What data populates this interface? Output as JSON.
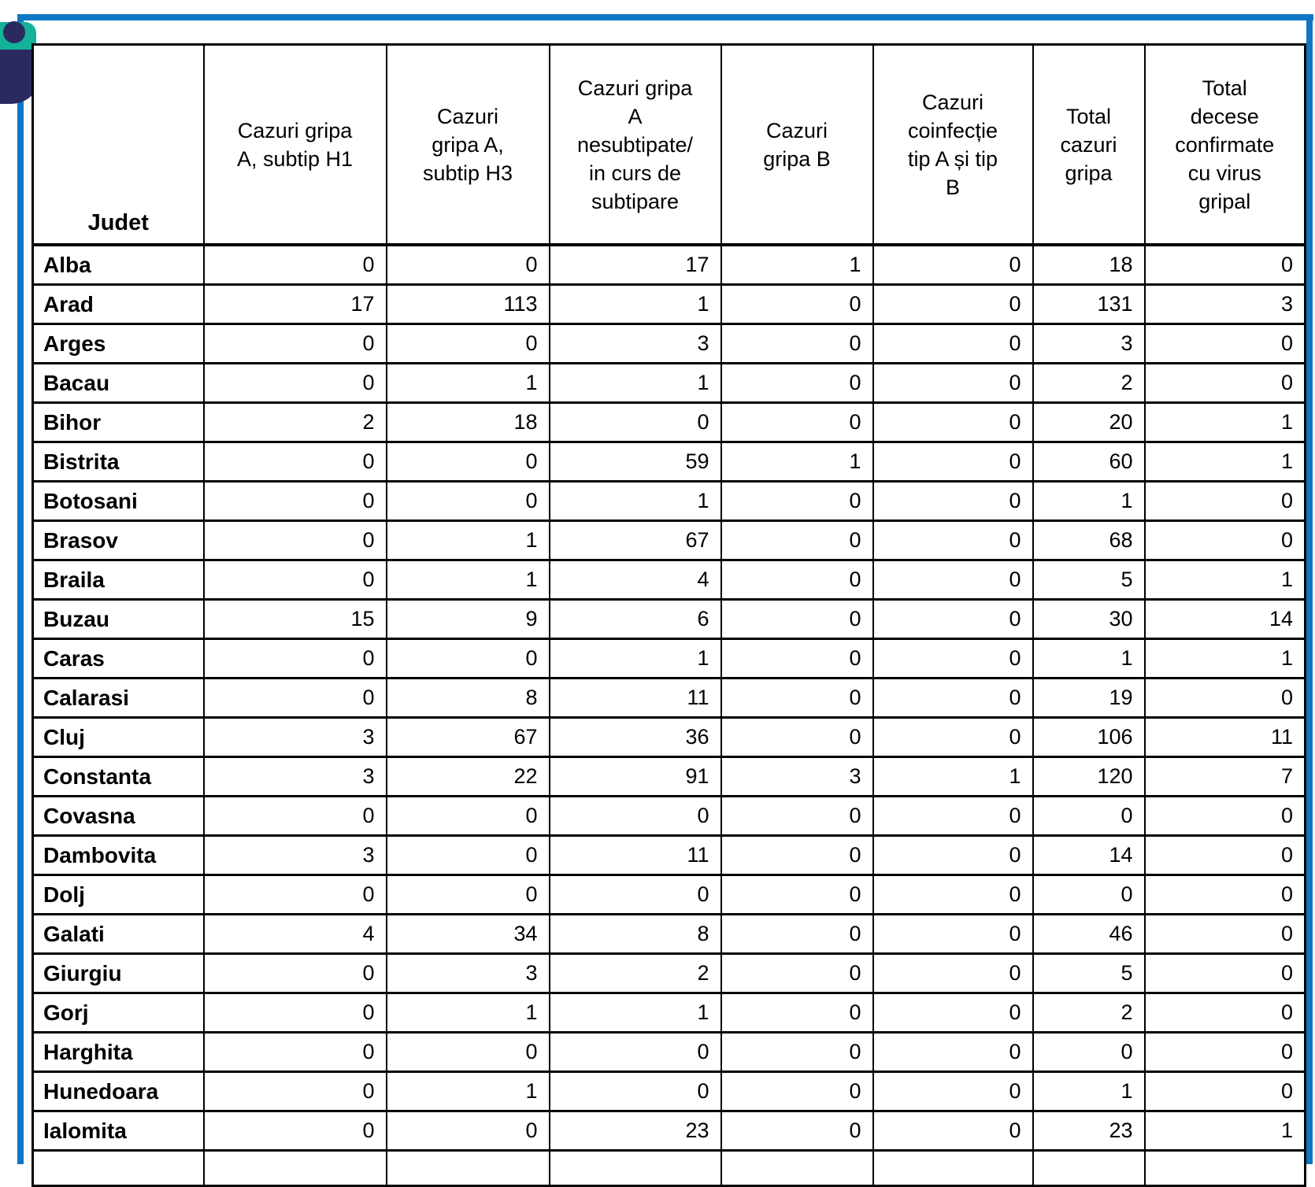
{
  "page": {
    "background": "#ffffff",
    "frame_color": "#0e76c5"
  },
  "logo": {
    "teal_color": "#15b29a",
    "navy_color": "#2a2a60"
  },
  "table": {
    "columns": [
      {
        "id": "judet",
        "label": "Judet"
      },
      {
        "id": "gripa_a_h1",
        "label": "Cazuri gripa\nA, subtip H1"
      },
      {
        "id": "gripa_a_h3",
        "label": "Cazuri\ngripa A,\nsubtip H3"
      },
      {
        "id": "gripa_a_nesubtipate",
        "label": "Cazuri gripa\nA\nnesubtipate/\nin curs de\nsubtipare"
      },
      {
        "id": "gripa_b",
        "label": "Cazuri\ngripa B"
      },
      {
        "id": "coinfectie_ab",
        "label": "Cazuri\ncoinfecție\ntip A și tip\nB"
      },
      {
        "id": "total_cazuri",
        "label": "Total\ncazuri\ngripa"
      },
      {
        "id": "total_decese",
        "label": "Total\ndecese\nconfirmate\ncu virus\ngripal"
      }
    ],
    "rows": [
      {
        "judet": "Alba",
        "values": [
          0,
          0,
          17,
          1,
          0,
          18,
          0
        ]
      },
      {
        "judet": "Arad",
        "values": [
          17,
          113,
          1,
          0,
          0,
          131,
          3
        ]
      },
      {
        "judet": "Arges",
        "values": [
          0,
          0,
          3,
          0,
          0,
          3,
          0
        ]
      },
      {
        "judet": "Bacau",
        "values": [
          0,
          1,
          1,
          0,
          0,
          2,
          0
        ]
      },
      {
        "judet": "Bihor",
        "values": [
          2,
          18,
          0,
          0,
          0,
          20,
          1
        ]
      },
      {
        "judet": "Bistrita",
        "values": [
          0,
          0,
          59,
          1,
          0,
          60,
          1
        ]
      },
      {
        "judet": "Botosani",
        "values": [
          0,
          0,
          1,
          0,
          0,
          1,
          0
        ]
      },
      {
        "judet": "Brasov",
        "values": [
          0,
          1,
          67,
          0,
          0,
          68,
          0
        ]
      },
      {
        "judet": "Braila",
        "values": [
          0,
          1,
          4,
          0,
          0,
          5,
          1
        ]
      },
      {
        "judet": "Buzau",
        "values": [
          15,
          9,
          6,
          0,
          0,
          30,
          14
        ]
      },
      {
        "judet": "Caras",
        "values": [
          0,
          0,
          1,
          0,
          0,
          1,
          1
        ]
      },
      {
        "judet": "Calarasi",
        "values": [
          0,
          8,
          11,
          0,
          0,
          19,
          0
        ]
      },
      {
        "judet": "Cluj",
        "values": [
          3,
          67,
          36,
          0,
          0,
          106,
          11
        ]
      },
      {
        "judet": "Constanta",
        "values": [
          3,
          22,
          91,
          3,
          1,
          120,
          7
        ]
      },
      {
        "judet": "Covasna",
        "values": [
          0,
          0,
          0,
          0,
          0,
          0,
          0
        ]
      },
      {
        "judet": "Dambovita",
        "values": [
          3,
          0,
          11,
          0,
          0,
          14,
          0
        ]
      },
      {
        "judet": "Dolj",
        "values": [
          0,
          0,
          0,
          0,
          0,
          0,
          0
        ]
      },
      {
        "judet": "Galati",
        "values": [
          4,
          34,
          8,
          0,
          0,
          46,
          0
        ]
      },
      {
        "judet": "Giurgiu",
        "values": [
          0,
          3,
          2,
          0,
          0,
          5,
          0
        ]
      },
      {
        "judet": "Gorj",
        "values": [
          0,
          1,
          1,
          0,
          0,
          2,
          0
        ]
      },
      {
        "judet": "Harghita",
        "values": [
          0,
          0,
          0,
          0,
          0,
          0,
          0
        ]
      },
      {
        "judet": "Hunedoara",
        "values": [
          0,
          1,
          0,
          0,
          0,
          1,
          0
        ]
      },
      {
        "judet": "Ialomita",
        "values": [
          0,
          0,
          23,
          0,
          0,
          23,
          1
        ]
      }
    ]
  }
}
